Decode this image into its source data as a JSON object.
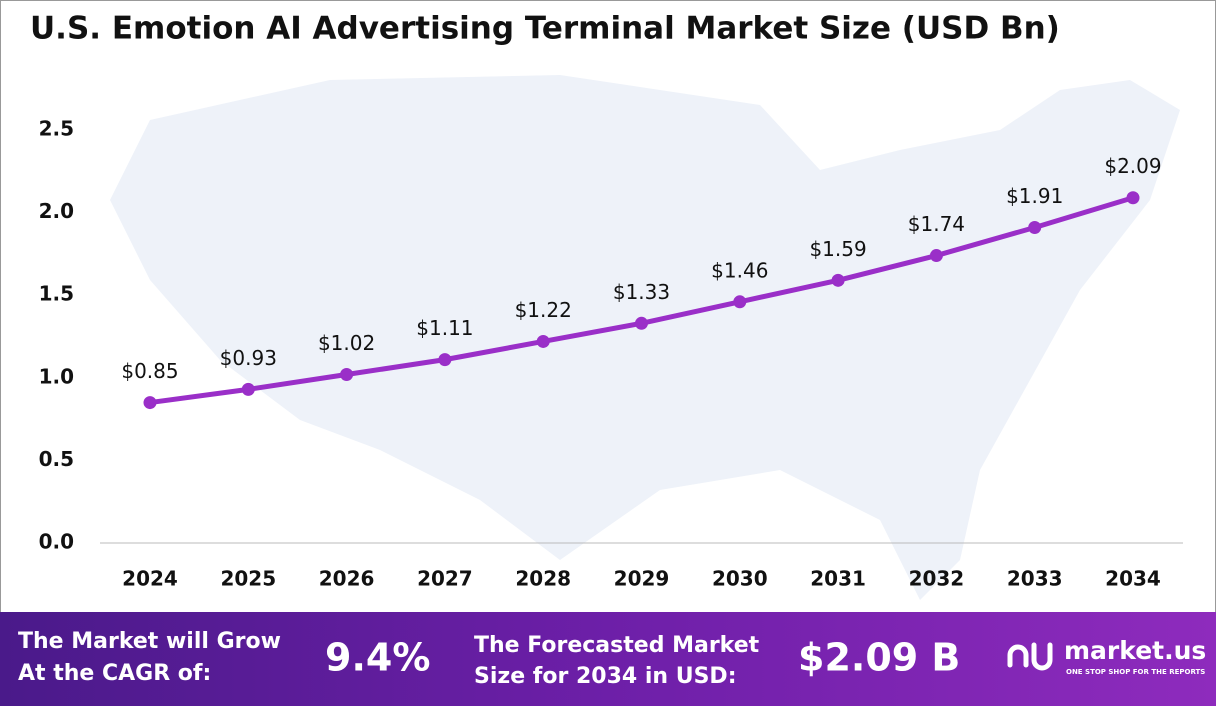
{
  "chart_data": {
    "type": "line",
    "title": "U.S. Emotion AI Advertising Terminal Market Size (USD Bn)",
    "categories": [
      "2024",
      "2025",
      "2026",
      "2027",
      "2028",
      "2029",
      "2030",
      "2031",
      "2032",
      "2033",
      "2034"
    ],
    "values": [
      0.85,
      0.93,
      1.02,
      1.11,
      1.22,
      1.33,
      1.46,
      1.59,
      1.74,
      1.91,
      2.09
    ],
    "value_labels": [
      "$0.85",
      "$0.93",
      "$1.02",
      "$1.11",
      "$1.22",
      "$1.33",
      "$1.46",
      "$1.59",
      "$1.74",
      "$1.91",
      "$2.09"
    ],
    "color": "#9a2fc8",
    "ylim": [
      0,
      2.5
    ],
    "yticks": [
      {
        "value": 0,
        "label": "0.0"
      },
      0.5,
      {
        "value": 1,
        "label": "1.0"
      },
      1.5,
      {
        "value": 2,
        "label": "2.0"
      },
      2.5
    ],
    "grid": false
  },
  "footer": {
    "cagr_label": [
      "The Market will Grow",
      "At the CAGR of:"
    ],
    "cagr_value": "9.4%",
    "forecast_label": [
      "The Forecasted Market",
      "Size for 2034 in USD:"
    ],
    "forecast_value": "$2.09 B",
    "brand": "market.us",
    "tagline": "ONE STOP SHOP FOR THE REPORTS"
  }
}
